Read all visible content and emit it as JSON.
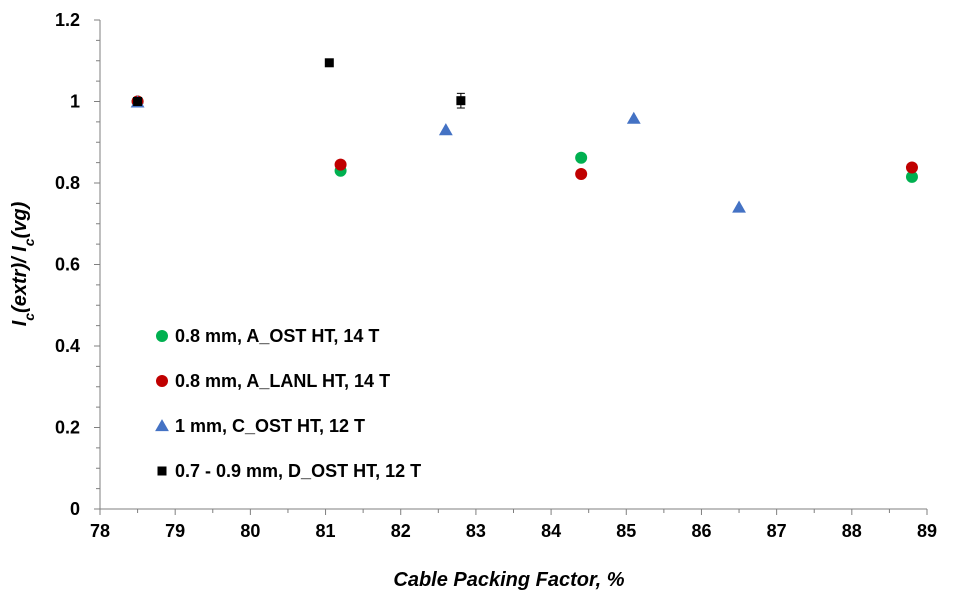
{
  "chart_data": {
    "type": "scatter",
    "xlabel": "Cable Packing Factor, %",
    "ylabel": {
      "parts": [
        {
          "text": "I",
          "sub": false
        },
        {
          "text": "c",
          "sub": true
        },
        {
          "text": "(extr)/ I",
          "sub": false
        },
        {
          "text": "c",
          "sub": true
        },
        {
          "text": "(vg)",
          "sub": false
        }
      ]
    },
    "xlim": [
      78,
      89
    ],
    "ylim": [
      0,
      1.2
    ],
    "xticks": [
      78,
      79,
      80,
      81,
      82,
      83,
      84,
      85,
      86,
      87,
      88,
      89
    ],
    "yticks": [
      0,
      0.2,
      0.4,
      0.6,
      0.8,
      1.0,
      1.2
    ],
    "ytick_labels": [
      "0",
      "0.2",
      "0.4",
      "0.6",
      "0.8",
      "1",
      "1.2"
    ],
    "grid": false,
    "legend_position": "bottom-left",
    "series": [
      {
        "name": "0.8 mm, A_OST HT, 14 T",
        "marker": "circle",
        "color": "#00b050",
        "points": [
          {
            "x": 78.5,
            "y": 1.0
          },
          {
            "x": 81.2,
            "y": 0.83
          },
          {
            "x": 84.4,
            "y": 0.862
          },
          {
            "x": 88.8,
            "y": 0.815
          }
        ]
      },
      {
        "name": "0.8 mm, A_LANL HT, 14 T",
        "marker": "circle",
        "color": "#c00000",
        "points": [
          {
            "x": 78.5,
            "y": 1.0
          },
          {
            "x": 81.2,
            "y": 0.845
          },
          {
            "x": 84.4,
            "y": 0.822
          },
          {
            "x": 88.8,
            "y": 0.838
          }
        ]
      },
      {
        "name": "1 mm, C_OST HT, 12 T",
        "marker": "triangle",
        "color": "#4472c4",
        "points": [
          {
            "x": 78.5,
            "y": 0.998
          },
          {
            "x": 82.6,
            "y": 0.93
          },
          {
            "x": 85.1,
            "y": 0.958
          },
          {
            "x": 86.5,
            "y": 0.74
          }
        ]
      },
      {
        "name": "0.7 - 0.9 mm, D_OST HT, 12 T",
        "marker": "square",
        "color": "#000000",
        "points": [
          {
            "x": 78.5,
            "y": 1.0
          },
          {
            "x": 81.05,
            "y": 1.095
          },
          {
            "x": 82.8,
            "y": 1.002,
            "err": 0.018
          }
        ]
      }
    ]
  }
}
